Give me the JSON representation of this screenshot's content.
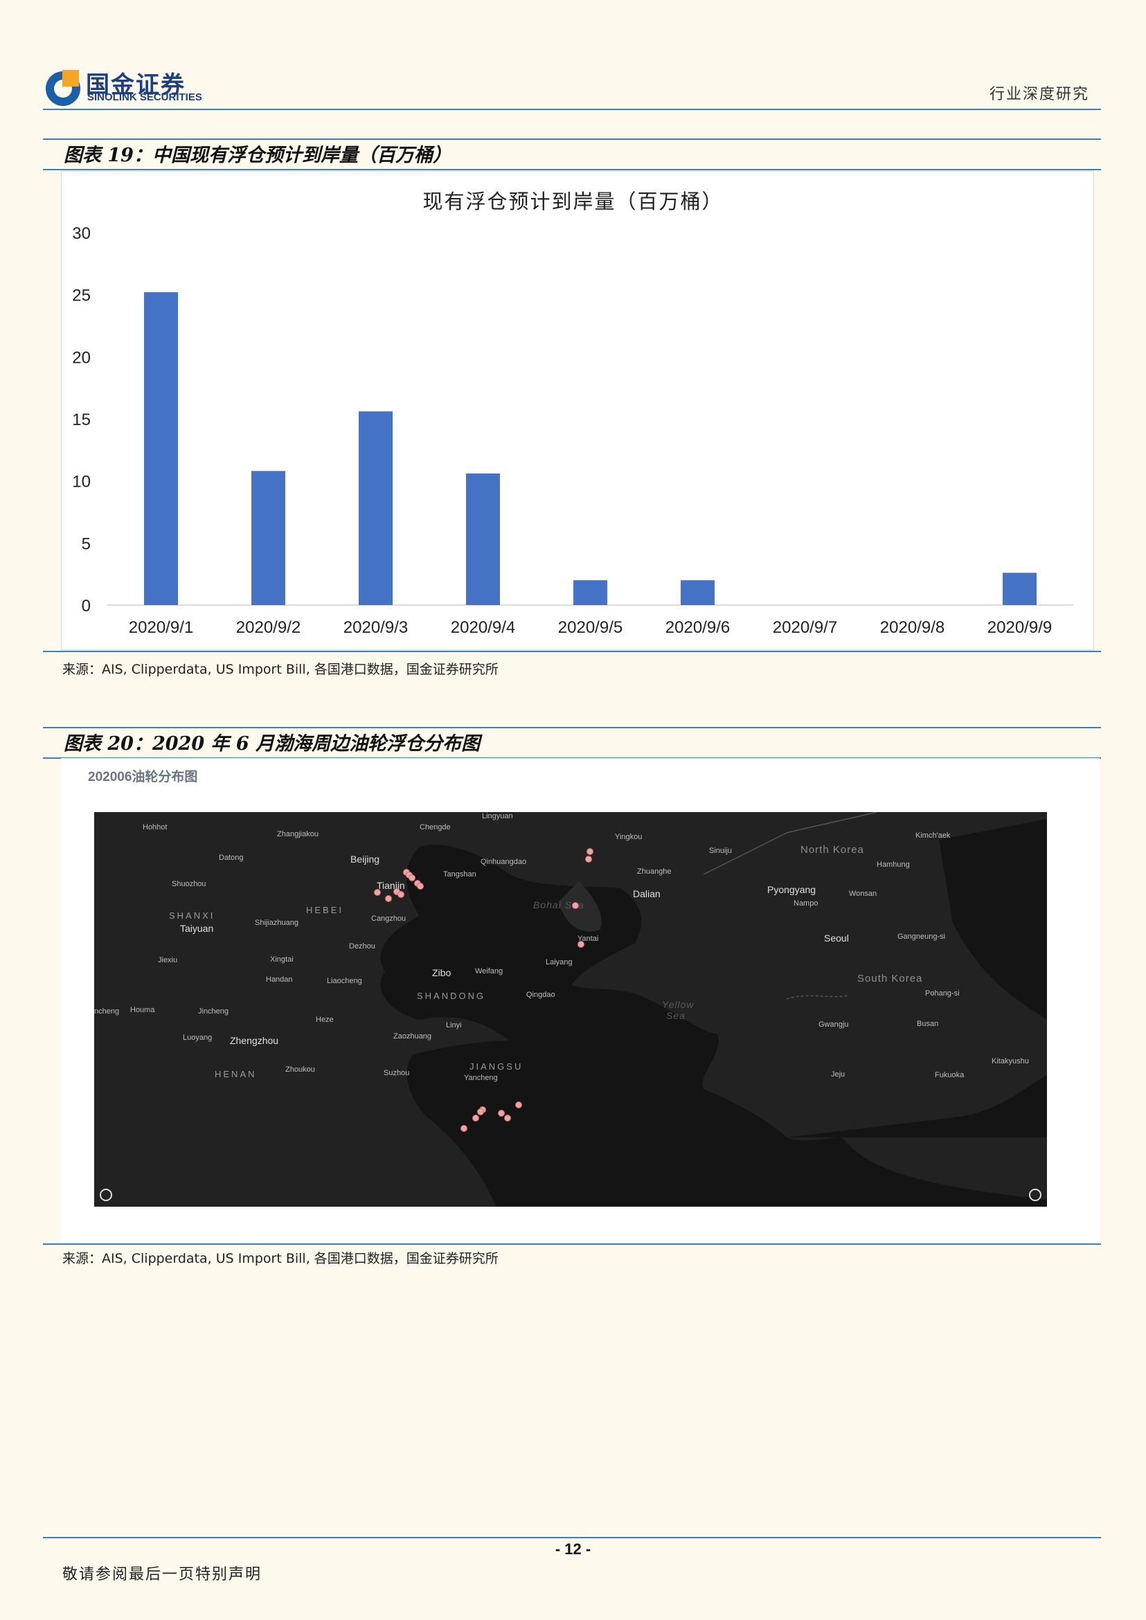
{
  "header": {
    "logo_cn": "国金证券",
    "logo_en": "SINOLINK SECURITIES",
    "doc_type": "行业深度研究"
  },
  "figure19": {
    "title": "图表 19：中国现有浮仓预计到岸量（百万桶）",
    "source": "来源：AIS, Clipperdata, US Import Bill, 各国港口数据，国金证券研究所"
  },
  "chart_data": {
    "type": "bar",
    "title": "现有浮仓预计到岸量（百万桶）",
    "categories": [
      "2020/9/1",
      "2020/9/2",
      "2020/9/3",
      "2020/9/4",
      "2020/9/5",
      "2020/9/6",
      "2020/9/7",
      "2020/9/8",
      "2020/9/9"
    ],
    "values": [
      25.2,
      10.8,
      15.6,
      10.6,
      2.0,
      2.0,
      0,
      0,
      2.6
    ],
    "ylim": [
      0,
      30
    ],
    "yticks": [
      0,
      5,
      10,
      15,
      20,
      25,
      30
    ],
    "bar_color": "#4472c4",
    "grid": false,
    "xlabel": "",
    "ylabel": ""
  },
  "figure20": {
    "title": "图表 20：2020 年 6 月渤海周边油轮浮仓分布图",
    "map_title": "202006油轮分布图",
    "source": "来源：AIS, Clipperdata, US Import Bill, 各国港口数据，国金证券研究所"
  },
  "map": {
    "labels": [
      {
        "t": "Hohhot",
        "c": ""
      },
      {
        "t": "Zhangjiakou",
        "c": ""
      },
      {
        "t": "Chengde",
        "c": ""
      },
      {
        "t": "Lingyuan",
        "c": ""
      },
      {
        "t": "Yingkou",
        "c": ""
      },
      {
        "t": "Sinuiju",
        "c": ""
      },
      {
        "t": "North Korea",
        "c": "country"
      },
      {
        "t": "Kimch'aek",
        "c": ""
      },
      {
        "t": "Datong",
        "c": ""
      },
      {
        "t": "Beijing",
        "c": "city"
      },
      {
        "t": "Qinhuangdao",
        "c": ""
      },
      {
        "t": "Hamhung",
        "c": ""
      },
      {
        "t": "Tangshan",
        "c": ""
      },
      {
        "t": "Zhuanghe",
        "c": ""
      },
      {
        "t": "Shuozhou",
        "c": ""
      },
      {
        "t": "Tianjin",
        "c": "city"
      },
      {
        "t": "Pyongyang",
        "c": "city"
      },
      {
        "t": "Dalian",
        "c": "city"
      },
      {
        "t": "Wonsan",
        "c": ""
      },
      {
        "t": "Bohai Sea",
        "c": "sea"
      },
      {
        "t": "Nampo",
        "c": ""
      },
      {
        "t": "SHANXI",
        "c": "prov"
      },
      {
        "t": "HEBEI",
        "c": "prov"
      },
      {
        "t": "Cangzhou",
        "c": ""
      },
      {
        "t": "Taiyuan",
        "c": "city"
      },
      {
        "t": "Shijiazhuang",
        "c": ""
      },
      {
        "t": "Seoul",
        "c": "city"
      },
      {
        "t": "Yantai",
        "c": ""
      },
      {
        "t": "Gangneung-si",
        "c": ""
      },
      {
        "t": "Dezhou",
        "c": ""
      },
      {
        "t": "Jiexiu",
        "c": ""
      },
      {
        "t": "Xingtai",
        "c": ""
      },
      {
        "t": "Laiyang",
        "c": ""
      },
      {
        "t": "Zibo",
        "c": "city"
      },
      {
        "t": "Weifang",
        "c": ""
      },
      {
        "t": "South Korea",
        "c": "country"
      },
      {
        "t": "Handan",
        "c": ""
      },
      {
        "t": "Liaocheng",
        "c": ""
      },
      {
        "t": "SHANDONG",
        "c": "prov"
      },
      {
        "t": "Qingdao",
        "c": ""
      },
      {
        "t": "Pohang-si",
        "c": ""
      },
      {
        "t": "Yellow",
        "c": "sea"
      },
      {
        "t": "Sea",
        "c": "sea"
      },
      {
        "t": "ncheng",
        "c": ""
      },
      {
        "t": "Houma",
        "c": ""
      },
      {
        "t": "Jincheng",
        "c": ""
      },
      {
        "t": "Heze",
        "c": ""
      },
      {
        "t": "Linyi",
        "c": ""
      },
      {
        "t": "Gwangju",
        "c": ""
      },
      {
        "t": "Busan",
        "c": ""
      },
      {
        "t": "Luoyang",
        "c": ""
      },
      {
        "t": "Zhengzhou",
        "c": "city"
      },
      {
        "t": "Zaozhuang",
        "c": ""
      },
      {
        "t": "JIANGSU",
        "c": "prov"
      },
      {
        "t": "Kitakyushu",
        "c": ""
      },
      {
        "t": "HENAN",
        "c": "prov"
      },
      {
        "t": "Zhoukou",
        "c": ""
      },
      {
        "t": "Suzhou",
        "c": ""
      },
      {
        "t": "Yancheng",
        "c": ""
      },
      {
        "t": "Jeju",
        "c": ""
      },
      {
        "t": "Fukuoka",
        "c": ""
      }
    ]
  },
  "footer": {
    "page": "- 12 -",
    "note": "敬请参阅最后一页特别声明"
  }
}
